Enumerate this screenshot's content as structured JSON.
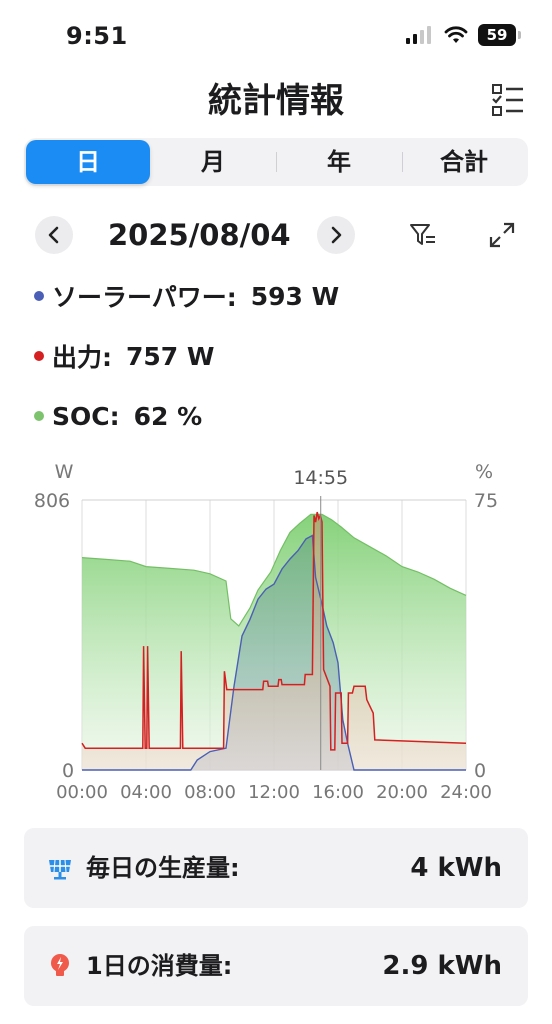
{
  "status_bar": {
    "time": "9:51",
    "battery_level": "59"
  },
  "header": {
    "title": "統計情報",
    "list_icon": "checklist-icon"
  },
  "period_tabs": [
    {
      "label": "日",
      "active": true
    },
    {
      "label": "月",
      "active": false
    },
    {
      "label": "年",
      "active": false
    },
    {
      "label": "合計",
      "active": false
    }
  ],
  "date_nav": {
    "date": "2025/08/04",
    "prev_icon": "chevron-left-icon",
    "next_icon": "chevron-right-icon",
    "filter_icon": "filter-icon",
    "expand_icon": "expand-icon"
  },
  "metrics": [
    {
      "label": "ソーラーパワー:",
      "value": "593 W",
      "color": "#4a5fb5"
    },
    {
      "label": "出力:",
      "value": "757 W",
      "color": "#d42020"
    },
    {
      "label": "SOC:",
      "value": "62 %",
      "color": "#7dc36e"
    }
  ],
  "chart_data": {
    "type": "area",
    "left_axis": {
      "unit": "W",
      "max_label": "806",
      "min_label": "0",
      "range": [
        0,
        806
      ]
    },
    "right_axis": {
      "unit": "%",
      "max_label": "75",
      "min_label": "0",
      "range": [
        0,
        75
      ]
    },
    "x_ticks": [
      "00:00",
      "04:00",
      "08:00",
      "12:00",
      "16:00",
      "20:00",
      "24:00"
    ],
    "x_range_hours": [
      0,
      24
    ],
    "cursor": {
      "time": "14:55",
      "hour": 14.92
    },
    "series": [
      {
        "name": "SOC",
        "axis": "right",
        "unit": "%",
        "color": "#7dc36e",
        "points": [
          [
            0,
            59
          ],
          [
            1.5,
            58.5
          ],
          [
            3,
            58
          ],
          [
            4,
            56.5
          ],
          [
            5.5,
            56
          ],
          [
            7,
            55.5
          ],
          [
            8,
            54.5
          ],
          [
            9,
            52.5
          ],
          [
            9.3,
            42
          ],
          [
            9.8,
            40
          ],
          [
            10.5,
            45
          ],
          [
            11,
            50
          ],
          [
            11.8,
            55
          ],
          [
            12.4,
            61
          ],
          [
            13,
            66
          ],
          [
            13.6,
            68.5
          ],
          [
            14.3,
            71
          ],
          [
            15,
            71
          ],
          [
            15.6,
            69.5
          ],
          [
            16.2,
            67.5
          ],
          [
            17,
            64.5
          ],
          [
            18,
            62
          ],
          [
            19,
            59.5
          ],
          [
            20,
            56.5
          ],
          [
            21,
            55
          ],
          [
            22,
            53
          ],
          [
            23,
            50.5
          ],
          [
            24,
            48.5
          ]
        ]
      },
      {
        "name": "ソーラーパワー",
        "axis": "left",
        "unit": "W",
        "color": "#4a5fb5",
        "points": [
          [
            0,
            0
          ],
          [
            6.8,
            0
          ],
          [
            7.2,
            30
          ],
          [
            8,
            55
          ],
          [
            9,
            65
          ],
          [
            9.5,
            250
          ],
          [
            10,
            400
          ],
          [
            10.5,
            450
          ],
          [
            11,
            510
          ],
          [
            11.5,
            540
          ],
          [
            12,
            555
          ],
          [
            12.5,
            600
          ],
          [
            13,
            630
          ],
          [
            13.5,
            655
          ],
          [
            14,
            690
          ],
          [
            14.4,
            700
          ],
          [
            14.6,
            575
          ],
          [
            15,
            495
          ],
          [
            15.3,
            430
          ],
          [
            15.7,
            380
          ],
          [
            16,
            320
          ],
          [
            16.3,
            150
          ],
          [
            16.6,
            80
          ],
          [
            17,
            0
          ],
          [
            24,
            0
          ]
        ]
      },
      {
        "name": "出力",
        "axis": "left",
        "unit": "W",
        "color": "#d42020",
        "points": [
          [
            0,
            80
          ],
          [
            0.2,
            65
          ],
          [
            3.8,
            65
          ],
          [
            3.85,
            370
          ],
          [
            3.95,
            65
          ],
          [
            4.05,
            65
          ],
          [
            4.1,
            370
          ],
          [
            4.2,
            65
          ],
          [
            6.15,
            65
          ],
          [
            6.2,
            355
          ],
          [
            6.3,
            65
          ],
          [
            8.85,
            65
          ],
          [
            8.9,
            295
          ],
          [
            9.05,
            240
          ],
          [
            11.3,
            240
          ],
          [
            11.35,
            265
          ],
          [
            11.6,
            265
          ],
          [
            11.65,
            250
          ],
          [
            12.25,
            250
          ],
          [
            12.3,
            270
          ],
          [
            12.45,
            270
          ],
          [
            12.5,
            255
          ],
          [
            13.9,
            255
          ],
          [
            13.95,
            285
          ],
          [
            14.4,
            285
          ],
          [
            14.5,
            760
          ],
          [
            14.6,
            740
          ],
          [
            14.7,
            770
          ],
          [
            14.8,
            750
          ],
          [
            14.9,
            760
          ],
          [
            15.0,
            740
          ],
          [
            15.1,
            300
          ],
          [
            15.5,
            250
          ],
          [
            15.55,
            60
          ],
          [
            15.8,
            60
          ],
          [
            15.85,
            230
          ],
          [
            16.2,
            230
          ],
          [
            16.25,
            80
          ],
          [
            16.6,
            80
          ],
          [
            16.65,
            230
          ],
          [
            16.9,
            230
          ],
          [
            17,
            250
          ],
          [
            17.7,
            250
          ],
          [
            17.8,
            210
          ],
          [
            18,
            190
          ],
          [
            18.2,
            170
          ],
          [
            18.3,
            90
          ],
          [
            24,
            80
          ]
        ]
      }
    ]
  },
  "summary": [
    {
      "icon": "solar-panel-icon",
      "label": "毎日の生産量:",
      "value": "4 kWh"
    },
    {
      "icon": "lightbulb-icon",
      "label": "1日の消費量:",
      "value": "2.9 kWh"
    }
  ]
}
